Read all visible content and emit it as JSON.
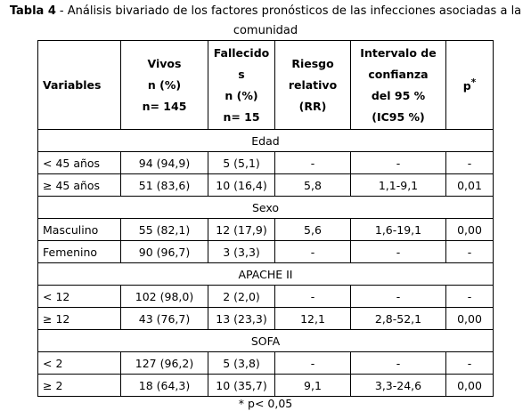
{
  "caption": {
    "label": "Tabla 4",
    "text": "- Análisis bivariado de los factores pronósticos de las infecciones asociadas a la comunidad"
  },
  "table": {
    "header": [
      [
        "Variables"
      ],
      [
        "Vivos",
        "n (%)",
        "n= 145"
      ],
      [
        "Fallecidos",
        "n (%)",
        "n= 15"
      ],
      [
        "Riesgo",
        "relativo",
        "(RR)"
      ],
      [
        "Intervalo de",
        "confianza",
        "del 95 %",
        "(IC95 %)"
      ],
      [
        "p"
      ]
    ],
    "header_sup": "*",
    "sections": [
      {
        "title": "Edad",
        "rows": [
          [
            "< 45 años",
            "94 (94,9)",
            "5 (5,1)",
            "-",
            "-",
            "-"
          ],
          [
            "≥ 45 años",
            "51 (83,6)",
            "10 (16,4)",
            "5,8",
            "1,1-9,1",
            "0,01"
          ]
        ]
      },
      {
        "title": "Sexo",
        "rows": [
          [
            "Masculino",
            "55 (82,1)",
            "12 (17,9)",
            "5,6",
            "1,6-19,1",
            "0,00"
          ],
          [
            "Femenino",
            "90 (96,7)",
            "3 (3,3)",
            "-",
            "-",
            "-"
          ]
        ]
      },
      {
        "title": "APACHE II",
        "rows": [
          [
            "< 12",
            "102 (98,0)",
            "2 (2,0)",
            "-",
            "-",
            "-"
          ],
          [
            "≥ 12",
            "43 (76,7)",
            "13 (23,3)",
            "12,1",
            "2,8-52,1",
            "0,00"
          ]
        ]
      },
      {
        "title": "SOFA",
        "rows": [
          [
            "< 2",
            "127 (96,2)",
            "5 (3,8)",
            "-",
            "-",
            "-"
          ],
          [
            "≥ 2",
            "18 (64,3)",
            "10 (35,7)",
            "9,1",
            "3,3-24,6",
            "0,00"
          ]
        ]
      }
    ]
  },
  "footnote": "* p< 0,05"
}
